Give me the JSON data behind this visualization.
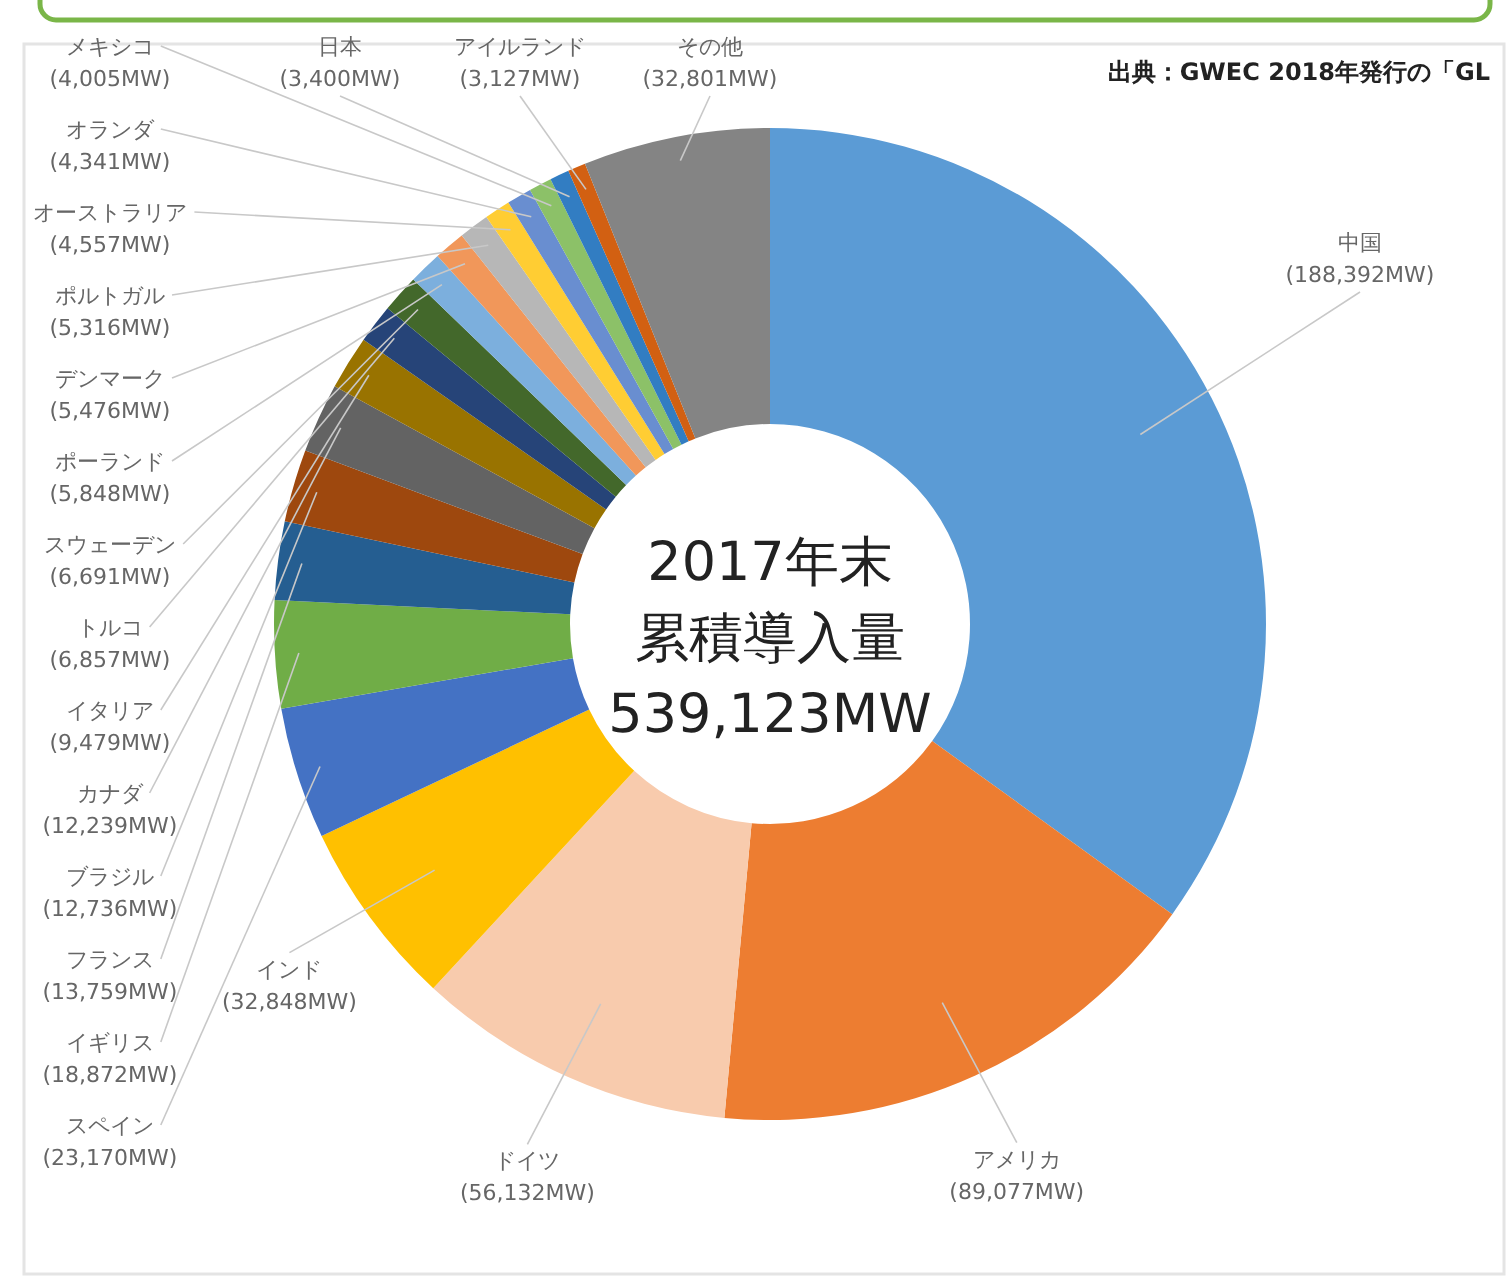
{
  "chart_data": {
    "type": "donut",
    "categories": [
      "中国",
      "アメリカ",
      "ドイツ",
      "インド",
      "スペイン",
      "イギリス",
      "フランス",
      "ブラジル",
      "カナダ",
      "イタリア",
      "トルコ",
      "スウェーデン",
      "ポーランド",
      "デンマーク",
      "ポルトガル",
      "オーストラリア",
      "オランダ",
      "メキシコ",
      "日本",
      "アイルランド",
      "その他"
    ],
    "values": [
      188392,
      89077,
      56132,
      32848,
      23170,
      18872,
      13759,
      12736,
      12239,
      9479,
      6857,
      6691,
      5848,
      5476,
      5316,
      4557,
      4341,
      4005,
      3400,
      3127,
      32801
    ],
    "value_labels": [
      "(188,392MW)",
      "(89,077MW)",
      "(56,132MW)",
      "(32,848MW)",
      "(23,170MW)",
      "(18,872MW)",
      "(13,759MW)",
      "(12,736MW)",
      "(12,239MW)",
      "(9,479MW)",
      "(6,857MW)",
      "(6,691MW)",
      "(5,848MW)",
      "(5,476MW)",
      "(5,316MW)",
      "(4,557MW)",
      "(4,341MW)",
      "(4,005MW)",
      "(3,400MW)",
      "(3,127MW)",
      "(32,801MW)"
    ],
    "colors": [
      "#5b9bd5",
      "#ed7d31",
      "#f8cbad",
      "#ffc000",
      "#4472c4",
      "#70ad47",
      "#255e91",
      "#9e480e",
      "#636363",
      "#997300",
      "#264478",
      "#43682b",
      "#7cafdd",
      "#f1975a",
      "#b7b7b7",
      "#ffcd33",
      "#698ed0",
      "#8cc168",
      "#327dc2",
      "#d26012",
      "#848484"
    ],
    "annotations": [
      "2017年末",
      "累積導入量",
      "539,123MW",
      "出典：GWEC 2018年発行の「GL"
    ]
  }
}
